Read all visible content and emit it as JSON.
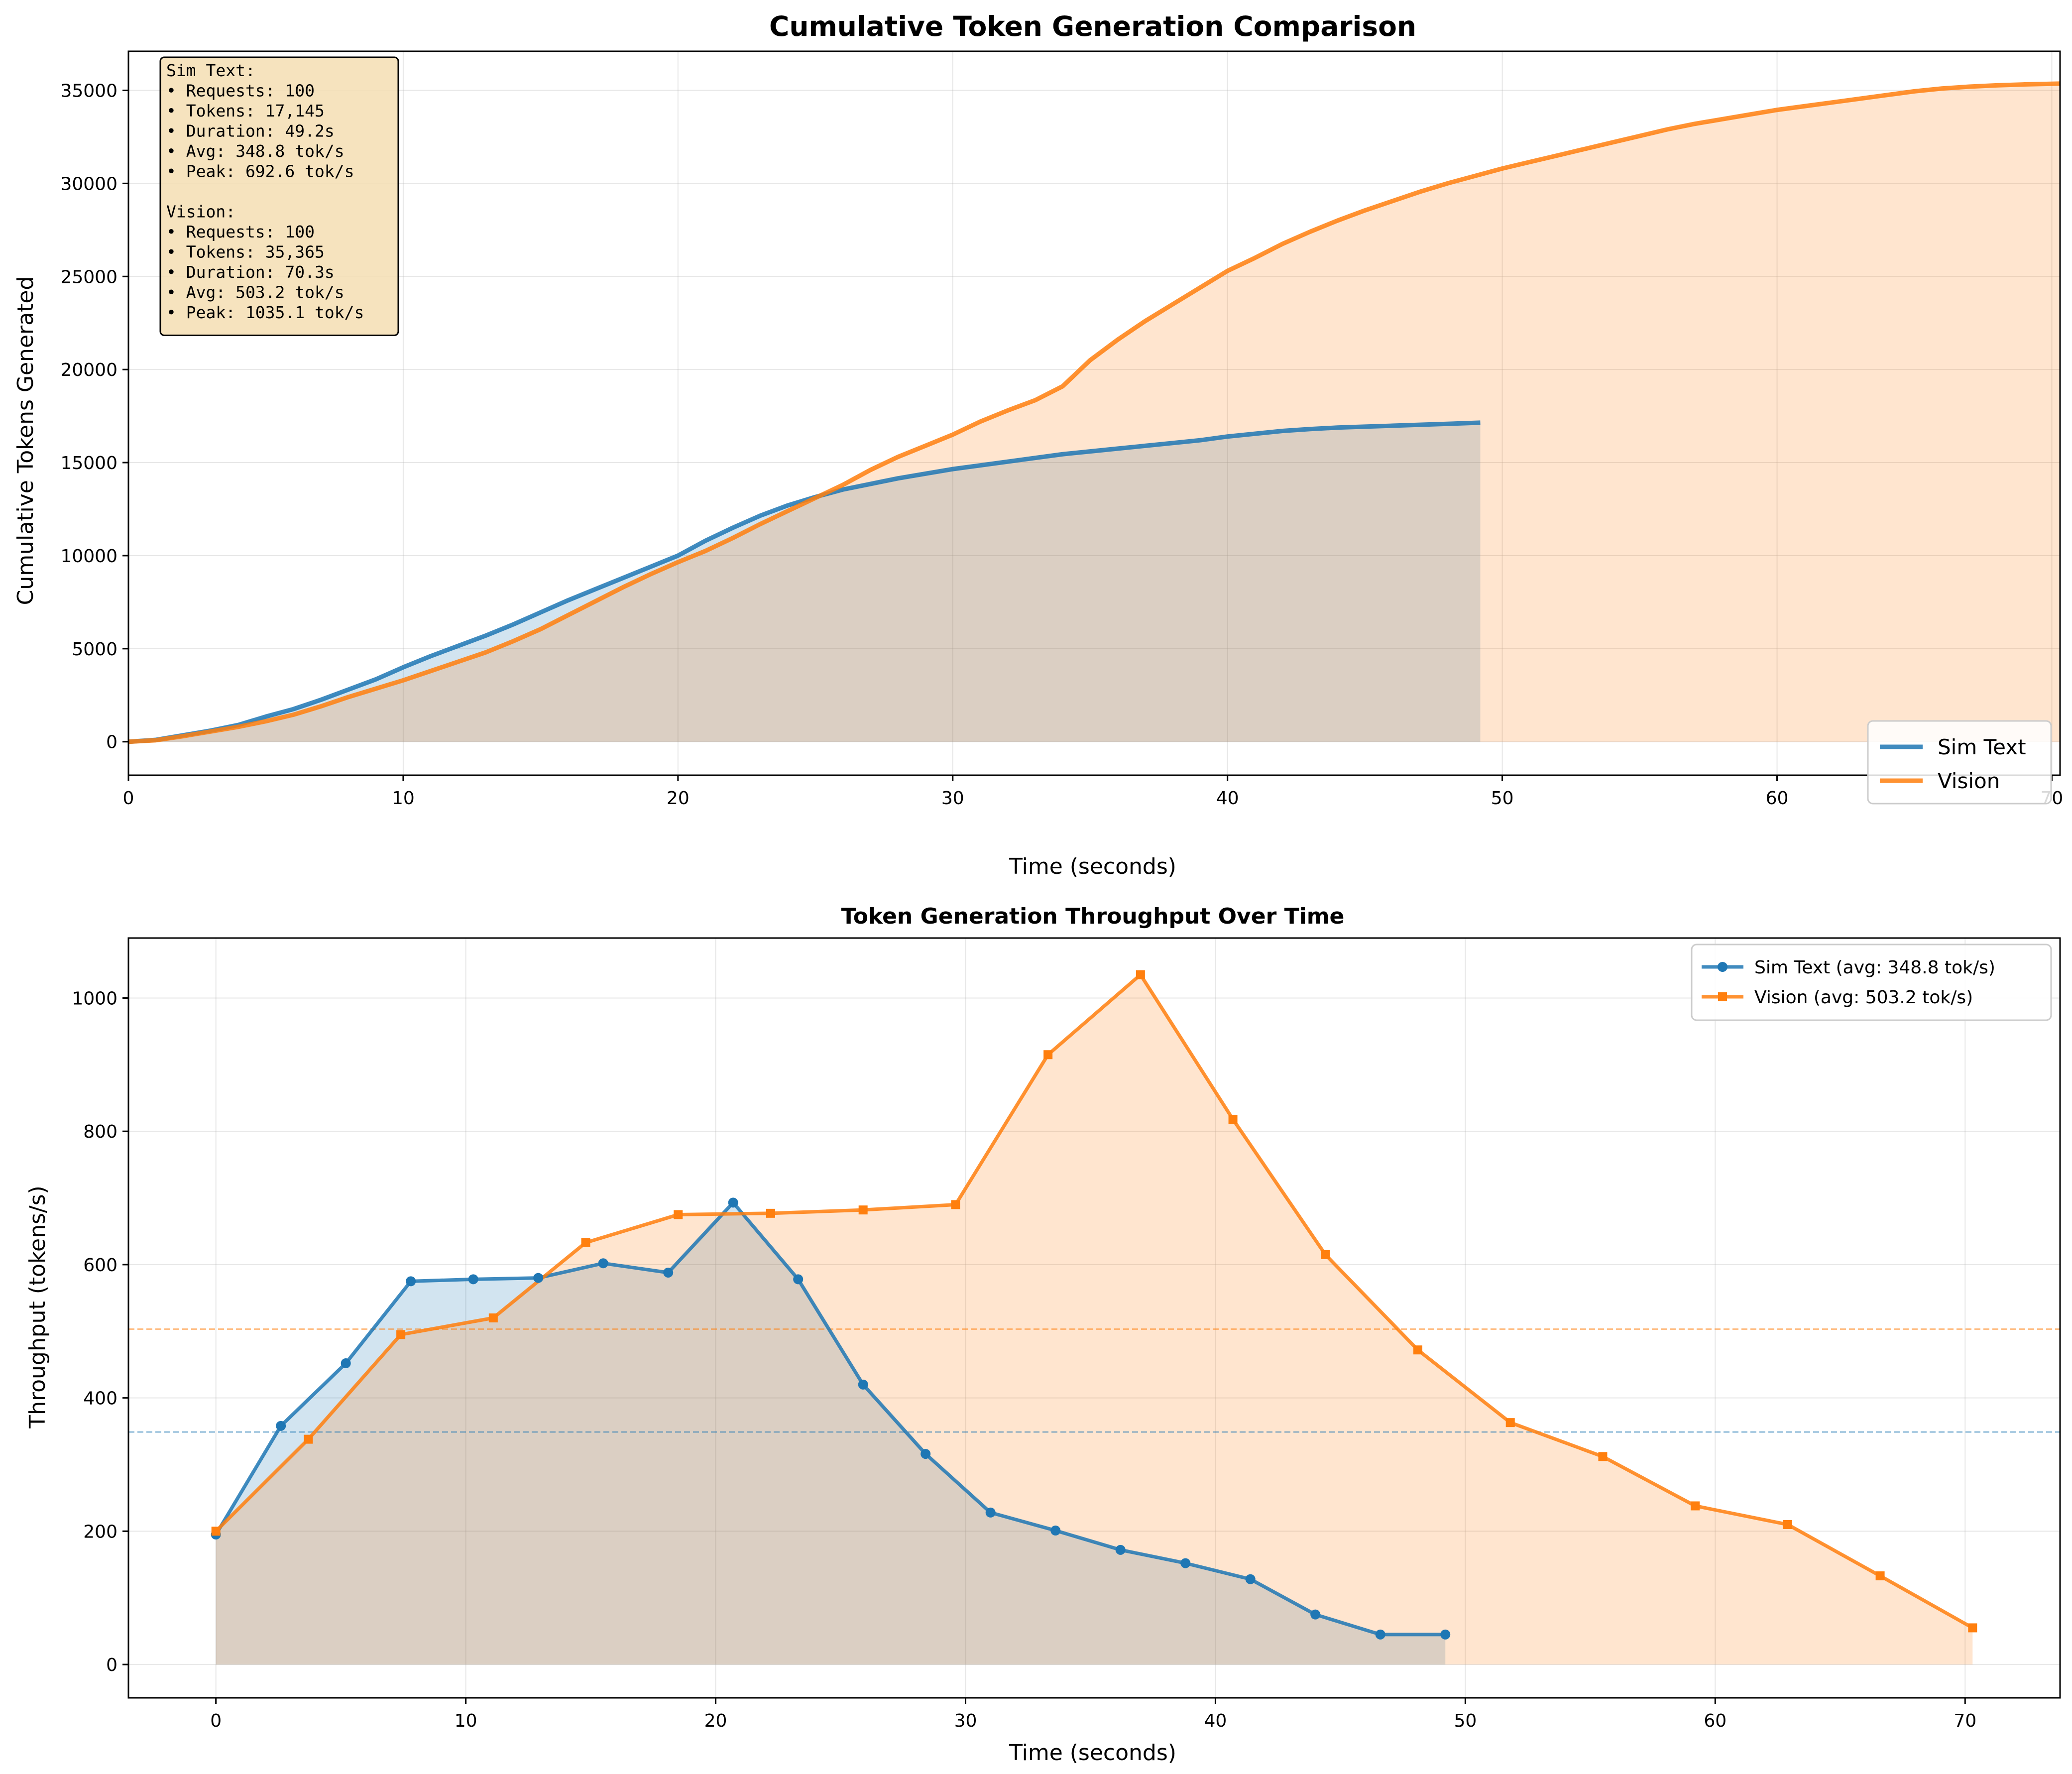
{
  "chart_data": [
    {
      "type": "area",
      "title": "Cumulative Token Generation Comparison",
      "xlabel": "Time (seconds)",
      "ylabel": "Cumulative Tokens Generated",
      "xlim": [
        0,
        70.3
      ],
      "ylim": [
        -1800,
        37100
      ],
      "xticks": [
        0,
        10,
        20,
        30,
        40,
        50,
        60,
        70
      ],
      "yticks": [
        0,
        5000,
        10000,
        15000,
        20000,
        25000,
        30000,
        35000
      ],
      "grid": true,
      "legend_position": "lower right",
      "series": [
        {
          "name": "Sim Text",
          "color": "#1f77b4",
          "points": [
            [
              0,
              0
            ],
            [
              1,
              100
            ],
            [
              2,
              350
            ],
            [
              3,
              600
            ],
            [
              4,
              900
            ],
            [
              5,
              1350
            ],
            [
              6,
              1750
            ],
            [
              7,
              2250
            ],
            [
              8,
              2800
            ],
            [
              9,
              3350
            ],
            [
              10,
              4000
            ],
            [
              11,
              4600
            ],
            [
              12,
              5150
            ],
            [
              13,
              5700
            ],
            [
              14,
              6300
            ],
            [
              15,
              6950
            ],
            [
              16,
              7600
            ],
            [
              17,
              8200
            ],
            [
              18,
              8800
            ],
            [
              19,
              9400
            ],
            [
              20,
              10000
            ],
            [
              21,
              10800
            ],
            [
              22,
              11500
            ],
            [
              23,
              12150
            ],
            [
              24,
              12700
            ],
            [
              25,
              13150
            ],
            [
              26,
              13550
            ],
            [
              27,
              13850
            ],
            [
              28,
              14150
            ],
            [
              29,
              14400
            ],
            [
              30,
              14650
            ],
            [
              31,
              14850
            ],
            [
              32,
              15050
            ],
            [
              33,
              15250
            ],
            [
              34,
              15450
            ],
            [
              35,
              15600
            ],
            [
              36,
              15750
            ],
            [
              37,
              15900
            ],
            [
              38,
              16050
            ],
            [
              39,
              16200
            ],
            [
              40,
              16400
            ],
            [
              41,
              16550
            ],
            [
              42,
              16700
            ],
            [
              43,
              16800
            ],
            [
              44,
              16880
            ],
            [
              45,
              16930
            ],
            [
              46,
              16980
            ],
            [
              47,
              17030
            ],
            [
              48,
              17080
            ],
            [
              49.2,
              17145
            ]
          ]
        },
        {
          "name": "Vision",
          "color": "#ff7f0e",
          "points": [
            [
              0,
              0
            ],
            [
              1,
              80
            ],
            [
              2,
              300
            ],
            [
              3,
              550
            ],
            [
              4,
              800
            ],
            [
              5,
              1100
            ],
            [
              6,
              1450
            ],
            [
              7,
              1900
            ],
            [
              8,
              2400
            ],
            [
              9,
              2850
            ],
            [
              10,
              3300
            ],
            [
              11,
              3800
            ],
            [
              12,
              4300
            ],
            [
              13,
              4800
            ],
            [
              14,
              5400
            ],
            [
              15,
              6050
            ],
            [
              16,
              6800
            ],
            [
              17,
              7550
            ],
            [
              18,
              8300
            ],
            [
              19,
              9000
            ],
            [
              20,
              9650
            ],
            [
              21,
              10250
            ],
            [
              22,
              10950
            ],
            [
              23,
              11700
            ],
            [
              24,
              12400
            ],
            [
              25,
              13100
            ],
            [
              26,
              13800
            ],
            [
              27,
              14600
            ],
            [
              28,
              15300
            ],
            [
              29,
              15900
            ],
            [
              30,
              16500
            ],
            [
              31,
              17200
            ],
            [
              32,
              17800
            ],
            [
              33,
              18350
            ],
            [
              34,
              19100
            ],
            [
              35,
              20500
            ],
            [
              36,
              21600
            ],
            [
              37,
              22600
            ],
            [
              38,
              23500
            ],
            [
              39,
              24400
            ],
            [
              40,
              25300
            ],
            [
              41,
              26000
            ],
            [
              42,
              26750
            ],
            [
              43,
              27400
            ],
            [
              44,
              28000
            ],
            [
              45,
              28550
            ],
            [
              46,
              29050
            ],
            [
              47,
              29550
            ],
            [
              48,
              30000
            ],
            [
              49,
              30400
            ],
            [
              50,
              30800
            ],
            [
              51,
              31150
            ],
            [
              52,
              31500
            ],
            [
              53,
              31850
            ],
            [
              54,
              32200
            ],
            [
              55,
              32550
            ],
            [
              56,
              32900
            ],
            [
              57,
              33200
            ],
            [
              58,
              33450
            ],
            [
              59,
              33700
            ],
            [
              60,
              33950
            ],
            [
              61,
              34150
            ],
            [
              62,
              34350
            ],
            [
              63,
              34550
            ],
            [
              64,
              34750
            ],
            [
              65,
              34950
            ],
            [
              66,
              35100
            ],
            [
              67,
              35200
            ],
            [
              68,
              35270
            ],
            [
              69,
              35320
            ],
            [
              70.3,
              35365
            ]
          ]
        }
      ],
      "annotation": [
        "Sim Text:",
        "• Requests: 100",
        "• Tokens: 17,145",
        "• Duration: 49.2s",
        "• Avg: 348.8 tok/s",
        "• Peak: 692.6 tok/s",
        "",
        "Vision:",
        "• Requests: 100",
        "• Tokens: 35,365",
        "• Duration: 70.3s",
        "• Avg: 503.2 tok/s",
        "• Peak: 1035.1 tok/s"
      ],
      "annotation_bg": "#f5deb3"
    },
    {
      "type": "line",
      "title": "Token Generation Throughput Over Time",
      "xlabel": "Time (seconds)",
      "ylabel": "Throughput (tokens/s)",
      "xlim": [
        -3.5,
        73.8
      ],
      "ylim": [
        -50,
        1090
      ],
      "xticks": [
        0,
        10,
        20,
        30,
        40,
        50,
        60,
        70
      ],
      "yticks": [
        0,
        200,
        400,
        600,
        800,
        1000
      ],
      "grid": true,
      "legend_position": "upper right",
      "series": [
        {
          "name": "Sim Text (avg: 348.8 tok/s)",
          "color": "#1f77b4",
          "marker": "circle",
          "avg": 348.8,
          "points": [
            [
              0,
              195
            ],
            [
              2.6,
              358
            ],
            [
              5.2,
              452
            ],
            [
              7.8,
              575
            ],
            [
              10.3,
              578
            ],
            [
              12.9,
              580
            ],
            [
              15.5,
              602
            ],
            [
              18.1,
              588
            ],
            [
              20.7,
              693
            ],
            [
              23.3,
              578
            ],
            [
              25.9,
              420
            ],
            [
              28.4,
              316
            ],
            [
              31,
              228
            ],
            [
              33.6,
              201
            ],
            [
              36.2,
              172
            ],
            [
              38.8,
              152
            ],
            [
              41.4,
              128
            ],
            [
              44,
              75
            ],
            [
              46.6,
              45
            ],
            [
              49.2,
              45
            ]
          ]
        },
        {
          "name": "Vision (avg: 503.2 tok/s)",
          "color": "#ff7f0e",
          "marker": "square",
          "avg": 503.2,
          "points": [
            [
              0,
              200
            ],
            [
              3.7,
              338
            ],
            [
              7.4,
              495
            ],
            [
              11.1,
              520
            ],
            [
              14.8,
              633
            ],
            [
              18.5,
              675
            ],
            [
              22.2,
              677
            ],
            [
              25.9,
              682
            ],
            [
              29.6,
              690
            ],
            [
              33.3,
              915
            ],
            [
              37,
              1035
            ],
            [
              40.7,
              818
            ],
            [
              44.4,
              615
            ],
            [
              48.1,
              472
            ],
            [
              51.8,
              363
            ],
            [
              55.5,
              312
            ],
            [
              59.2,
              238
            ],
            [
              62.9,
              210
            ],
            [
              66.6,
              133
            ],
            [
              70.3,
              55
            ]
          ]
        }
      ]
    }
  ]
}
